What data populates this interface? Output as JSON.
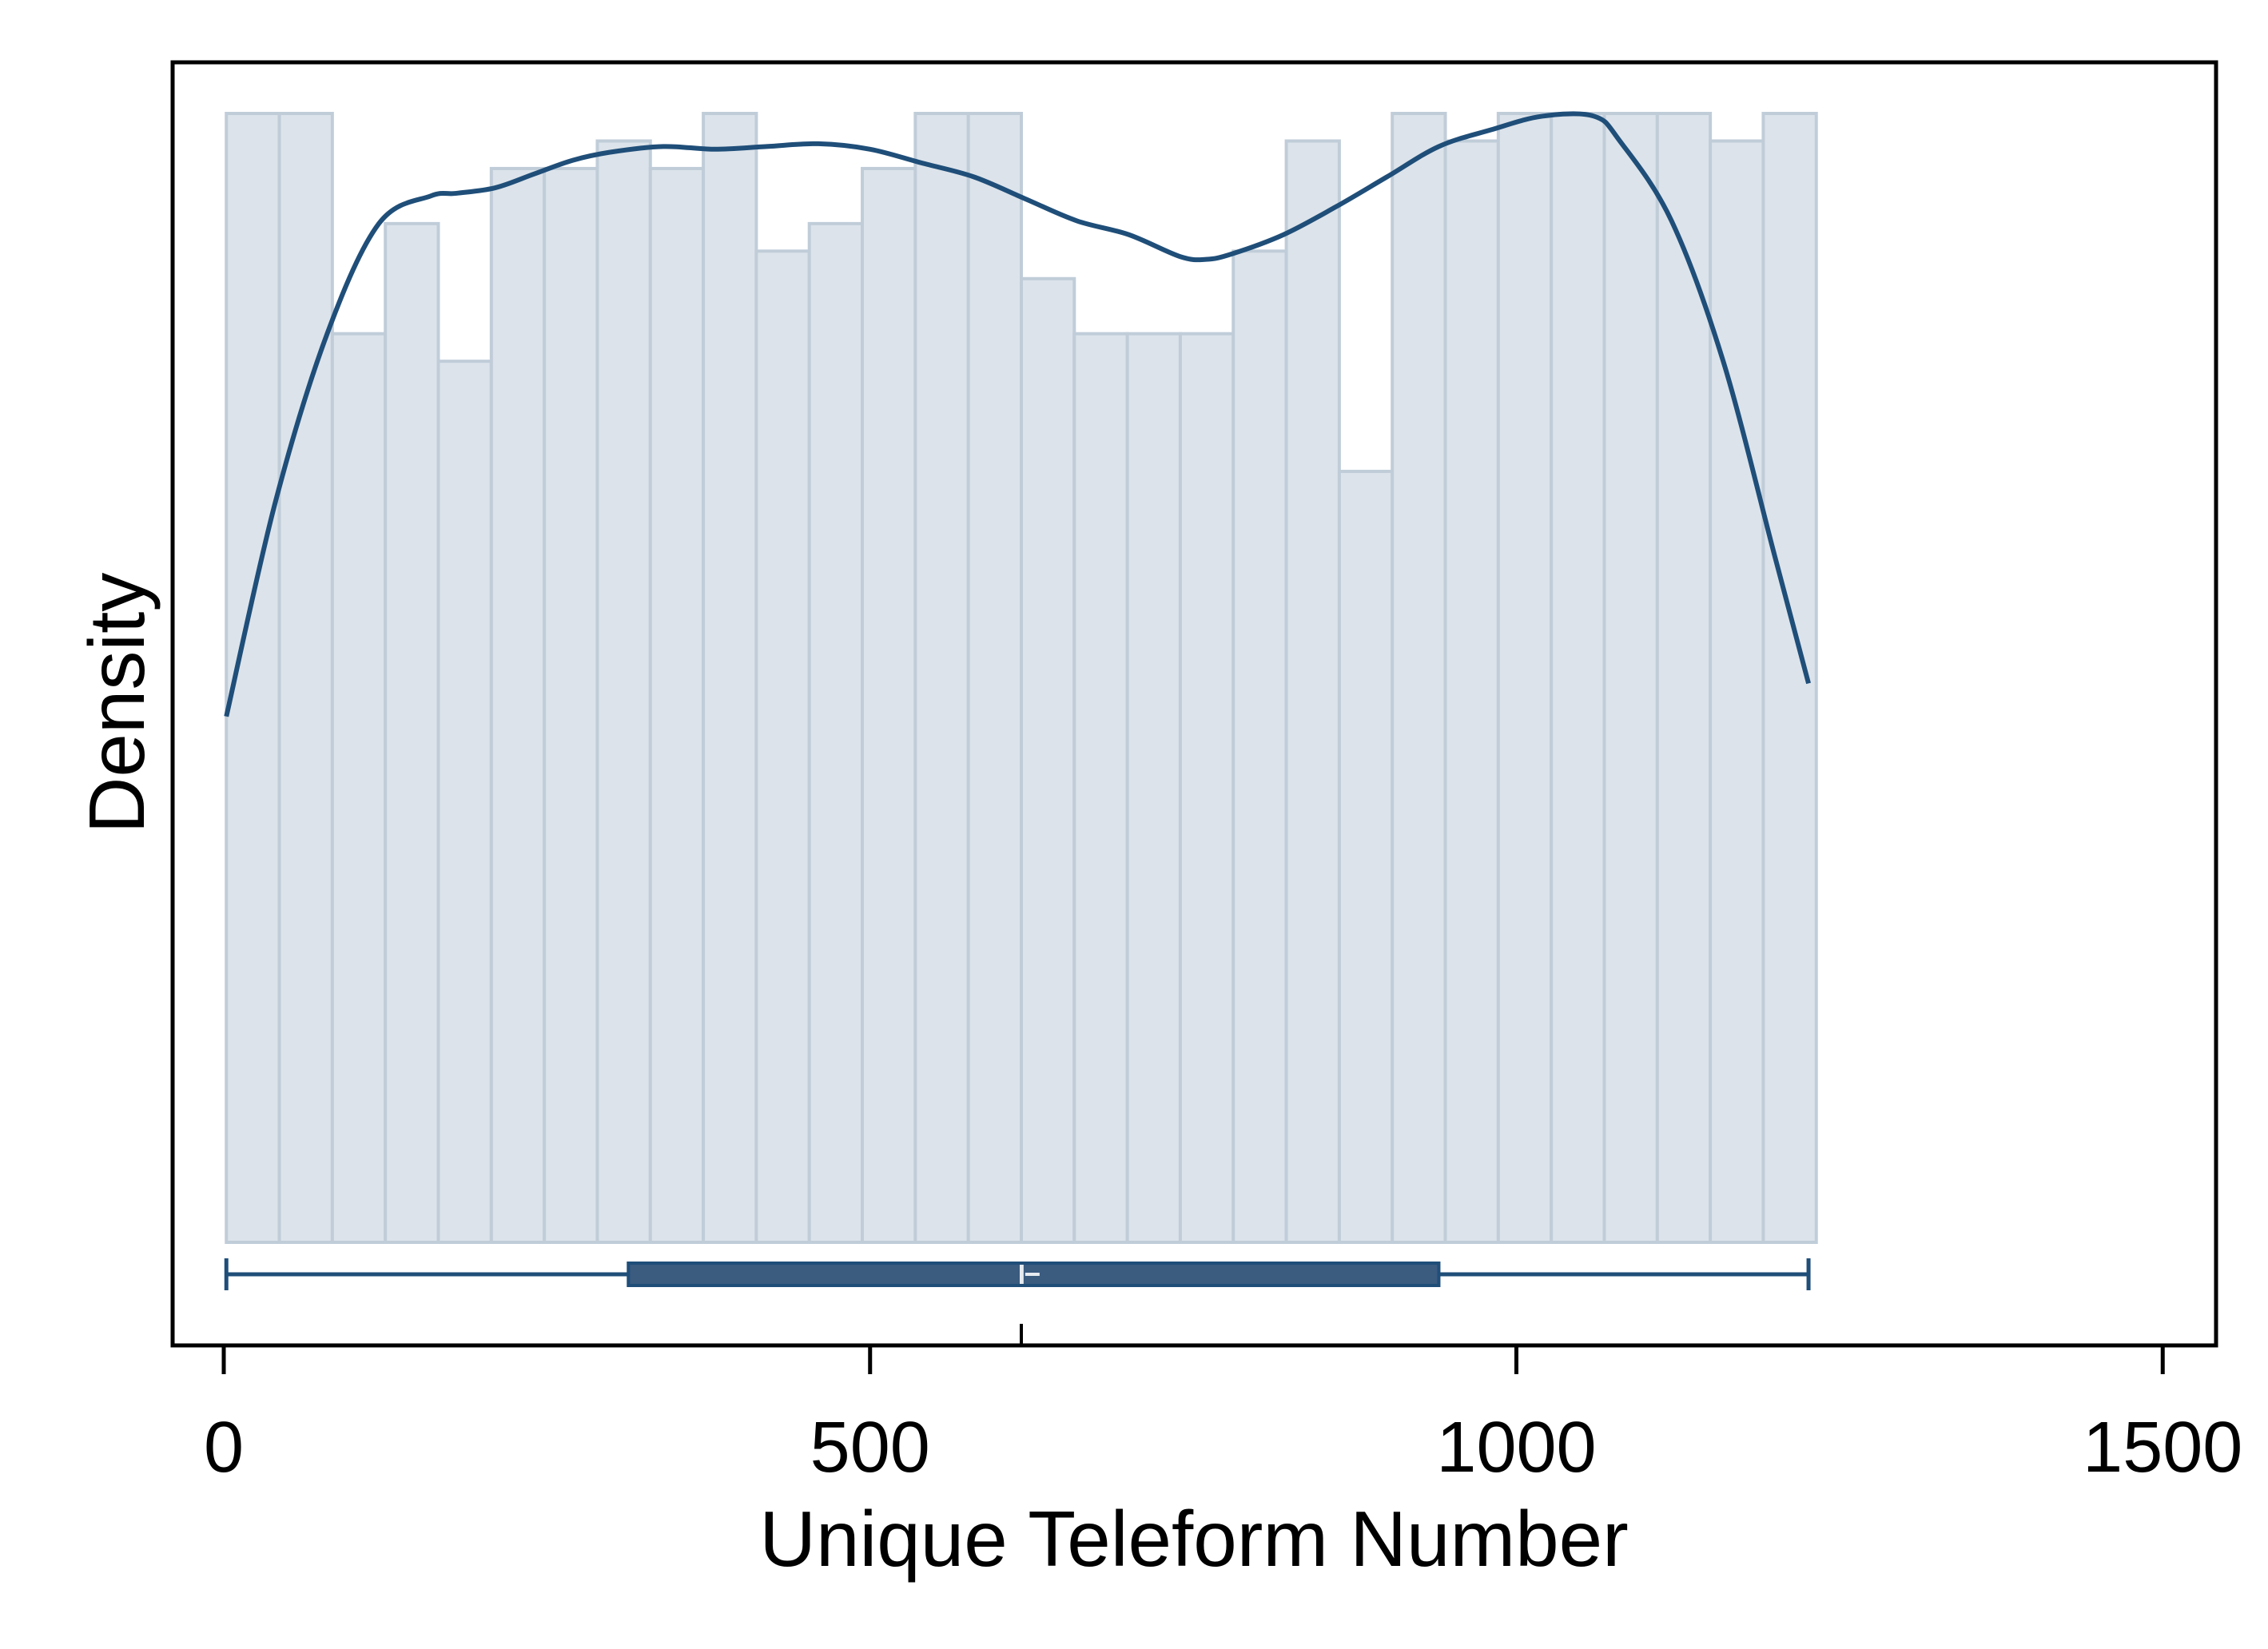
{
  "chart_data": {
    "type": "histogram",
    "xlabel": "Unique Teleform Number",
    "ylabel": "Density",
    "xlim": [
      -20,
      1550
    ],
    "x_ticks": [
      0,
      500,
      1000,
      1500
    ],
    "x_tick_labels": [
      "0",
      "500",
      "1000",
      "1500"
    ],
    "y_ticks": [],
    "grid": false,
    "legend": "none",
    "bin_width": 41,
    "bins_start": 2,
    "bin_heights": [
      41,
      41,
      33,
      37,
      32,
      39,
      39,
      40,
      39,
      41,
      36,
      37,
      39,
      41,
      41,
      35,
      33,
      33,
      33,
      36,
      40,
      28,
      41,
      40,
      41,
      41,
      41,
      41,
      40,
      41
    ],
    "y_max": 43,
    "density_curve": {
      "x": [
        2,
        40,
        80,
        120,
        160,
        180,
        210,
        240,
        270,
        300,
        340,
        380,
        420,
        460,
        500,
        540,
        580,
        620,
        660,
        700,
        740,
        760,
        780,
        820,
        860,
        900,
        940,
        980,
        1020,
        1060,
        1080,
        1120,
        1160,
        1200,
        1226
      ],
      "y": [
        19.1,
        26.9,
        33.0,
        37.0,
        38.0,
        38.1,
        38.3,
        38.8,
        39.3,
        39.6,
        39.8,
        39.7,
        39.8,
        39.9,
        39.7,
        39.2,
        38.7,
        37.9,
        37.1,
        36.6,
        35.8,
        35.7,
        35.9,
        36.6,
        37.6,
        38.7,
        39.8,
        40.4,
        40.9,
        40.9,
        40.0,
        37.1,
        32.0,
        24.9,
        20.3
      ]
    },
    "boxplot": {
      "min": 2,
      "q1": 313,
      "median": 617,
      "mean": 620,
      "q3": 940,
      "max": 1226
    },
    "colors": {
      "bar_fill": "#dce3ea",
      "bar_edge": "#c0cdd9",
      "curve": "#1f4e79",
      "box_fill": "#3b5b7f",
      "box_edge": "#1f4e79",
      "frame": "#000000"
    }
  }
}
